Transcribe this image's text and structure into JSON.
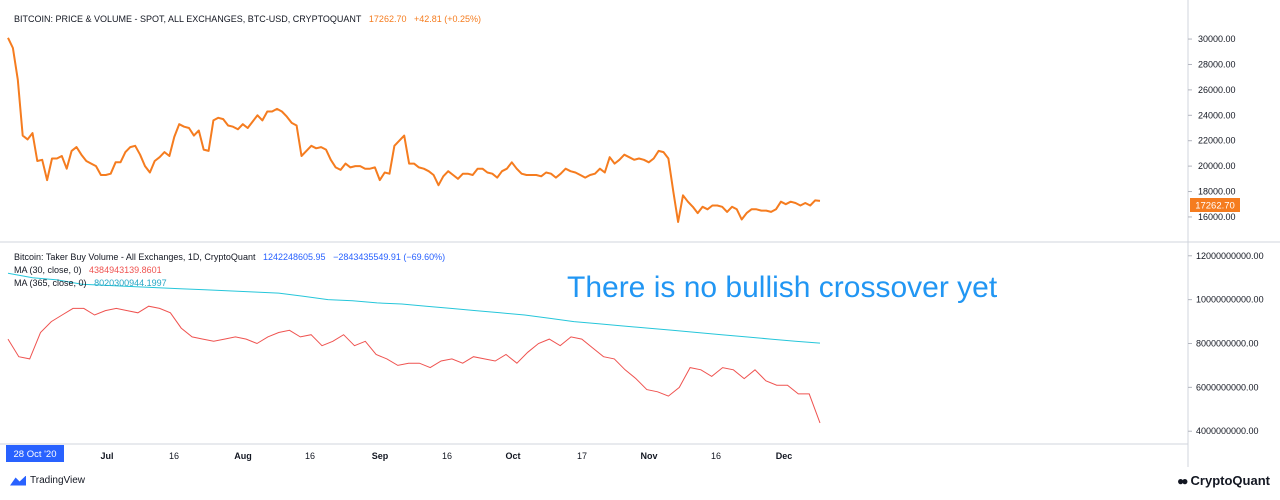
{
  "header": {
    "symbol": "BITCOIN: PRICE & VOLUME - SPOT, ALL EXCHANGES, BTC-USD, CRYPTOQUANT",
    "last": "17262.70",
    "change": "+42.81 (+0.25%)"
  },
  "lower_header": {
    "symbol": "Bitcoin: Taker Buy Volume - All Exchanges, 1D, CryptoQuant",
    "value": "1242248605.95",
    "change": "−2843435549.91 (−69.60%)",
    "ma30_label": "MA (30, close, 0)",
    "ma30_value": "4384943139.8601",
    "ma365_label": "MA (365, close, 0)",
    "ma365_value": "8020300944.1997"
  },
  "annotation": "There is no bullish crossover yet",
  "price_badge": "17262.70",
  "date_badge": "28 Oct '20",
  "brand_left": "TradingView",
  "brand_right": "CryptoQuant",
  "colors": {
    "price": "#f57c1f",
    "ma30": "#ef5350",
    "ma365": "#26c6da",
    "annotation": "#2196f3",
    "date_badge": "#2962ff"
  },
  "chart_data": [
    {
      "type": "line",
      "title": "BITCOIN: PRICE & VOLUME - SPOT, ALL EXCHANGES, BTC-USD, CRYPTOQUANT",
      "ylim": [
        14500,
        31500
      ],
      "yticks": [
        "30000.00",
        "28000.00",
        "26000.00",
        "24000.00",
        "22000.00",
        "20000.00",
        "18000.00",
        "16000.00"
      ],
      "series": [
        {
          "name": "",
          "values": [
            30100,
            29300,
            26800,
            22400,
            22100,
            22600,
            20400,
            20500,
            18900,
            20600,
            20600,
            20800,
            19800,
            21200,
            21500,
            20900,
            20400,
            20200,
            20000,
            19300,
            19300,
            19400,
            20300,
            20300,
            21100,
            21500,
            21600,
            20900,
            20000,
            19500,
            20400,
            20700,
            21100,
            20800,
            22300,
            23300,
            23100,
            23000,
            22400,
            22800,
            21300,
            21200,
            23600,
            23800,
            23700,
            23200,
            23100,
            22900,
            23300,
            23000,
            23500,
            24000,
            23600,
            24300,
            24300,
            24500,
            24300,
            23900,
            23400,
            23200,
            20800,
            21200,
            21600,
            21400,
            21500,
            21300,
            20500,
            19900,
            19700,
            20200,
            19900,
            20000,
            20000,
            19800,
            19800,
            19900,
            18900,
            19500,
            19400,
            21600,
            22000,
            22400,
            20200,
            20200,
            19900,
            19800,
            19600,
            19300,
            18500,
            19200,
            19600,
            19300,
            19000,
            19400,
            19400,
            19300,
            19800,
            19800,
            19500,
            19400,
            19100,
            19600,
            19800,
            20300,
            19800,
            19400,
            19300,
            19300,
            19300,
            19200,
            19500,
            19400,
            19100,
            19400,
            19800,
            19600,
            19500,
            19300,
            19100,
            19300,
            19400,
            19800,
            19500,
            20700,
            20200,
            20500,
            20900,
            20700,
            20500,
            20600,
            20500,
            20300,
            20600,
            21200,
            21100,
            20600,
            18000,
            15600,
            17700,
            17200,
            16800,
            16300,
            16800,
            16600,
            16900,
            16900,
            16800,
            16400,
            16800,
            16600,
            15800,
            16300,
            16600,
            16600,
            16500,
            16500,
            16400,
            16600,
            17200,
            17000,
            17200,
            17100,
            16900,
            17100,
            16900,
            17300,
            17262.7
          ]
        }
      ]
    },
    {
      "type": "line",
      "title": "Bitcoin: Taker Buy Volume - All Exchanges, 1D, CryptoQuant",
      "ylim": [
        3600000000,
        12400000000
      ],
      "yticks": [
        "12000000000.00",
        "10000000000.00",
        "8000000000.00",
        "6000000000.00",
        "4000000000.00"
      ],
      "xticks": [
        "Jul",
        "16",
        "Aug",
        "16",
        "Sep",
        "16",
        "Oct",
        "17",
        "Nov",
        "16",
        "Dec"
      ],
      "series": [
        {
          "name": "MA (30, close, 0)",
          "values": [
            8200000000,
            7400000000,
            7300000000,
            8500000000,
            9000000000,
            9300000000,
            9600000000,
            9600000000,
            9300000000,
            9500000000,
            9600000000,
            9500000000,
            9400000000,
            9700000000,
            9600000000,
            9400000000,
            8700000000,
            8300000000,
            8200000000,
            8100000000,
            8200000000,
            8300000000,
            8200000000,
            8000000000,
            8300000000,
            8500000000,
            8600000000,
            8300000000,
            8400000000,
            7900000000,
            8100000000,
            8400000000,
            7900000000,
            8100000000,
            7500000000,
            7300000000,
            7000000000,
            7100000000,
            7100000000,
            6900000000,
            7200000000,
            7300000000,
            7100000000,
            7400000000,
            7300000000,
            7200000000,
            7500000000,
            7100000000,
            7600000000,
            8000000000,
            8200000000,
            7900000000,
            8300000000,
            8200000000,
            7800000000,
            7400000000,
            7300000000,
            6800000000,
            6400000000,
            5900000000,
            5800000000,
            5600000000,
            6000000000,
            6900000000,
            6800000000,
            6500000000,
            6900000000,
            6800000000,
            6400000000,
            6800000000,
            6300000000,
            6100000000,
            6100000000,
            5700000000,
            5700000000,
            4380000000
          ]
        },
        {
          "name": "MA (365, close, 0)",
          "values": [
            11200000000,
            11000000000,
            10900000000,
            10700000000,
            10650000000,
            10600000000,
            10550000000,
            10500000000,
            10450000000,
            10400000000,
            10350000000,
            10300000000,
            10150000000,
            10000000000,
            9950000000,
            9850000000,
            9800000000,
            9700000000,
            9600000000,
            9500000000,
            9400000000,
            9300000000,
            9150000000,
            9000000000,
            8900000000,
            8800000000,
            8700000000,
            8600000000,
            8500000000,
            8400000000,
            8300000000,
            8200000000,
            8100000000,
            8020000000
          ]
        }
      ]
    }
  ]
}
